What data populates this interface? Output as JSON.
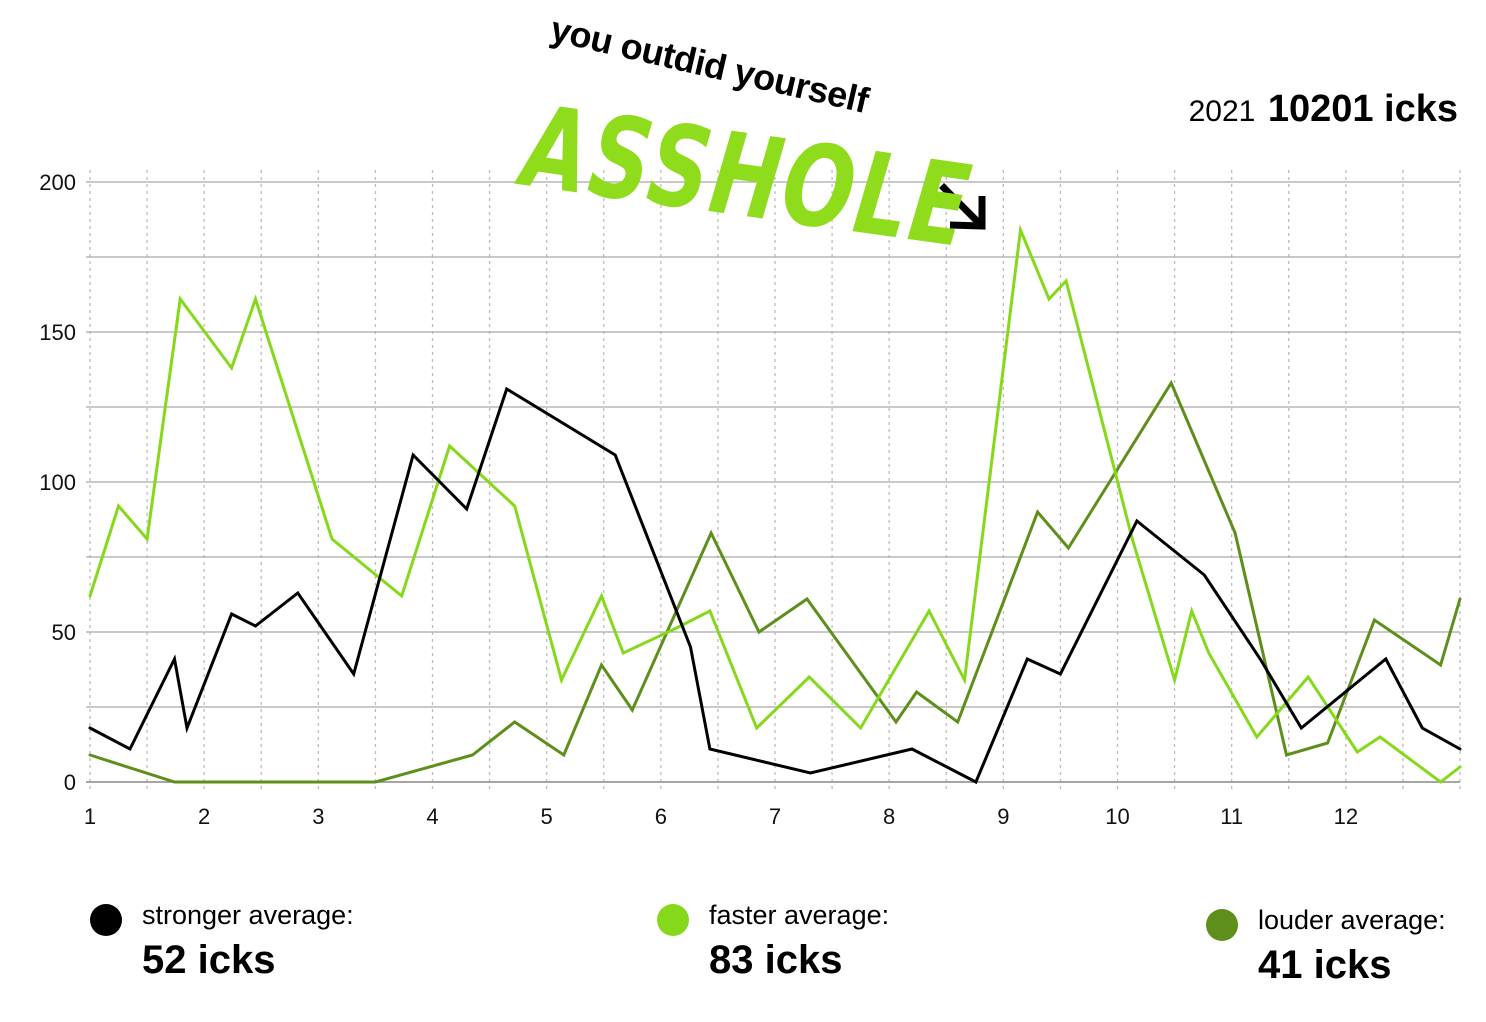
{
  "annotation": {
    "text": "you outdid yourself",
    "stylized": "ASSHOLE",
    "arrow_glyph": "arrow-down-right-icon"
  },
  "summary": {
    "year": "2021",
    "total": "10201 icks"
  },
  "legend": [
    {
      "label": "stronger average:",
      "value": "52 icks",
      "color": "#000000"
    },
    {
      "label": "faster average:",
      "value": "83 icks",
      "color": "#86d91a"
    },
    {
      "label": "louder average:",
      "value": "41 icks",
      "color": "#5e8f1b"
    }
  ],
  "chart_data": {
    "type": "line",
    "xlim": [
      1,
      13
    ],
    "ylim": [
      0,
      200
    ],
    "x_ticks": [
      1,
      2,
      3,
      4,
      5,
      6,
      7,
      8,
      9,
      10,
      11,
      12
    ],
    "y_ticks": [
      0,
      50,
      100,
      150,
      200
    ],
    "grid": true,
    "series": [
      {
        "name": "stronger",
        "color": "#000000",
        "points": [
          [
            1.0,
            18
          ],
          [
            1.35,
            11
          ],
          [
            1.74,
            41
          ],
          [
            1.85,
            18
          ],
          [
            2.24,
            56
          ],
          [
            2.45,
            52
          ],
          [
            2.82,
            63
          ],
          [
            3.31,
            36
          ],
          [
            3.83,
            109
          ],
          [
            4.3,
            91
          ],
          [
            4.65,
            131
          ],
          [
            5.6,
            109
          ],
          [
            6.26,
            45
          ],
          [
            6.43,
            11
          ],
          [
            7.31,
            3
          ],
          [
            8.2,
            11
          ],
          [
            8.76,
            0
          ],
          [
            9.21,
            41
          ],
          [
            9.5,
            36
          ],
          [
            10.17,
            87
          ],
          [
            10.76,
            69
          ],
          [
            11.25,
            41
          ],
          [
            11.61,
            18
          ],
          [
            12.35,
            41
          ],
          [
            12.67,
            18
          ],
          [
            13.0,
            11
          ]
        ]
      },
      {
        "name": "faster",
        "color": "#86d91a",
        "points": [
          [
            1.0,
            62
          ],
          [
            1.25,
            92
          ],
          [
            1.5,
            81
          ],
          [
            1.79,
            161
          ],
          [
            2.24,
            138
          ],
          [
            2.45,
            161
          ],
          [
            3.12,
            81
          ],
          [
            3.73,
            62
          ],
          [
            4.15,
            112
          ],
          [
            4.72,
            92
          ],
          [
            5.13,
            34
          ],
          [
            5.48,
            62
          ],
          [
            5.67,
            43
          ],
          [
            6.12,
            51
          ],
          [
            6.43,
            57
          ],
          [
            6.84,
            18
          ],
          [
            7.3,
            35
          ],
          [
            7.75,
            18
          ],
          [
            8.35,
            57
          ],
          [
            8.66,
            34
          ],
          [
            9.15,
            184
          ],
          [
            9.4,
            161
          ],
          [
            9.55,
            167
          ],
          [
            10.13,
            81
          ],
          [
            10.5,
            34
          ],
          [
            10.65,
            57
          ],
          [
            10.8,
            43
          ],
          [
            11.22,
            15
          ],
          [
            11.67,
            35
          ],
          [
            12.1,
            10
          ],
          [
            12.3,
            15
          ],
          [
            12.83,
            0
          ],
          [
            13.0,
            5
          ]
        ]
      },
      {
        "name": "louder",
        "color": "#5e8f1b",
        "points": [
          [
            1.0,
            9
          ],
          [
            1.74,
            0
          ],
          [
            3.5,
            0
          ],
          [
            4.35,
            9
          ],
          [
            4.72,
            20
          ],
          [
            5.15,
            9
          ],
          [
            5.48,
            39
          ],
          [
            5.75,
            24
          ],
          [
            6.44,
            83
          ],
          [
            6.86,
            50
          ],
          [
            7.28,
            61
          ],
          [
            8.06,
            20
          ],
          [
            8.24,
            30
          ],
          [
            8.6,
            20
          ],
          [
            9.3,
            90
          ],
          [
            9.57,
            78
          ],
          [
            10.47,
            133
          ],
          [
            11.03,
            83
          ],
          [
            11.48,
            9
          ],
          [
            11.84,
            13
          ],
          [
            12.25,
            54
          ],
          [
            12.83,
            39
          ],
          [
            13.0,
            61
          ]
        ]
      }
    ]
  }
}
